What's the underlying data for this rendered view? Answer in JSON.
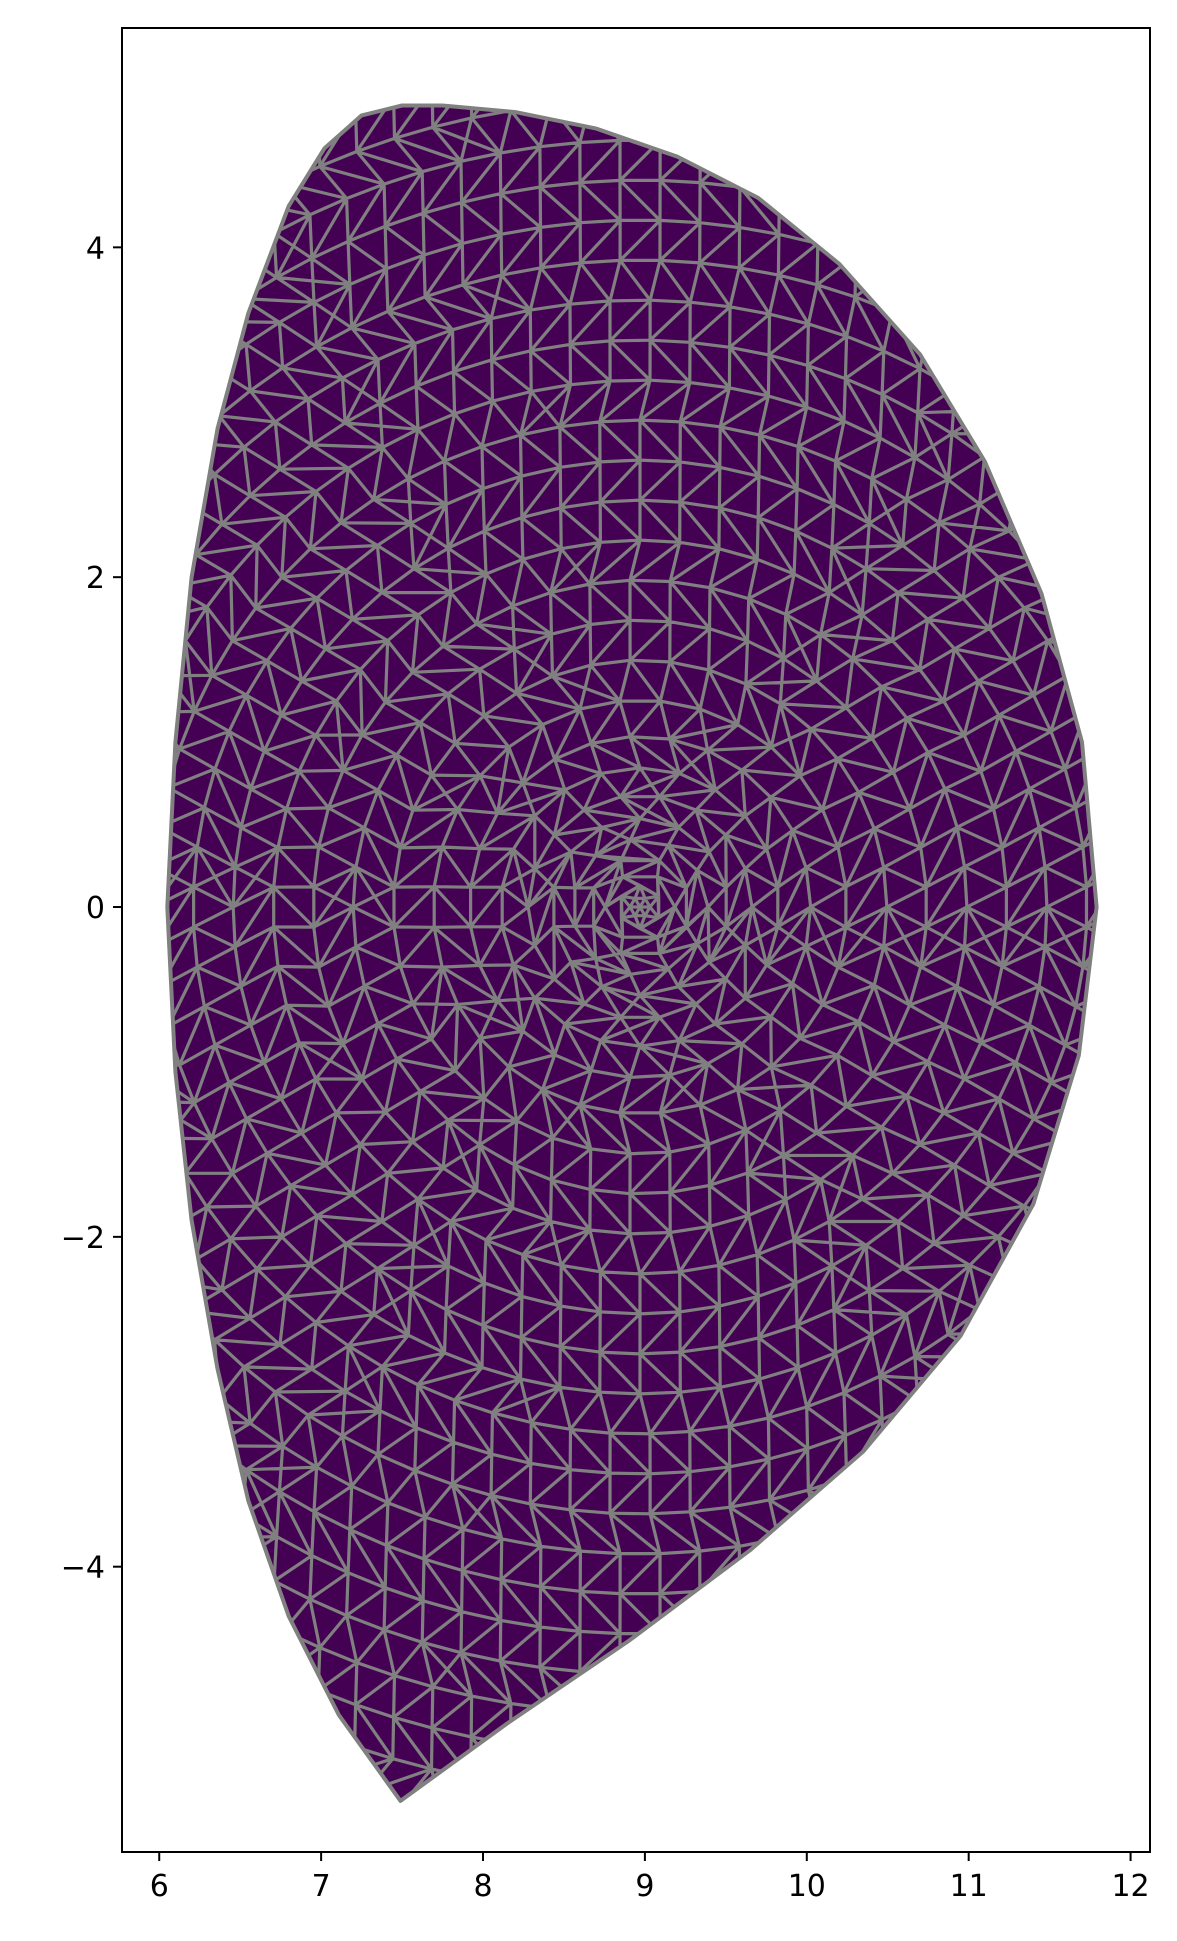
{
  "chart_data": {
    "type": "mesh",
    "title": "",
    "xlabel": "",
    "ylabel": "",
    "xlim": [
      5.77,
      12.12
    ],
    "ylim": [
      -5.73,
      5.33
    ],
    "xticks": [
      6,
      7,
      8,
      9,
      10,
      11,
      12
    ],
    "yticks": [
      -4,
      -2,
      0,
      2,
      4
    ],
    "xtick_labels": [
      "6",
      "7",
      "8",
      "9",
      "10",
      "11",
      "12"
    ],
    "ytick_labels": [
      "−4",
      "−2",
      "0",
      "2",
      "4"
    ],
    "grid": false,
    "legend": "none",
    "fill_color": "#440154",
    "edge_color": "#808080",
    "mesh_center": [
      8.97,
      0.0
    ],
    "boundary": [
      [
        7.49,
        -5.42
      ],
      [
        7.11,
        -4.9
      ],
      [
        6.8,
        -4.3
      ],
      [
        6.55,
        -3.6
      ],
      [
        6.36,
        -2.8
      ],
      [
        6.2,
        -1.9
      ],
      [
        6.1,
        -1.0
      ],
      [
        6.05,
        0.0
      ],
      [
        6.1,
        1.0
      ],
      [
        6.2,
        2.0
      ],
      [
        6.36,
        2.9
      ],
      [
        6.55,
        3.6
      ],
      [
        6.8,
        4.25
      ],
      [
        7.02,
        4.6
      ],
      [
        7.25,
        4.8
      ],
      [
        7.5,
        4.86
      ],
      [
        7.75,
        4.86
      ],
      [
        8.2,
        4.82
      ],
      [
        8.7,
        4.72
      ],
      [
        9.2,
        4.55
      ],
      [
        9.7,
        4.3
      ],
      [
        10.2,
        3.9
      ],
      [
        10.7,
        3.35
      ],
      [
        11.1,
        2.7
      ],
      [
        11.45,
        1.9
      ],
      [
        11.7,
        1.0
      ],
      [
        11.79,
        0.0
      ],
      [
        11.68,
        -0.9
      ],
      [
        11.4,
        -1.8
      ],
      [
        10.95,
        -2.6
      ],
      [
        10.35,
        -3.3
      ],
      [
        9.65,
        -3.9
      ],
      [
        8.9,
        -4.45
      ],
      [
        8.15,
        -4.95
      ],
      [
        7.49,
        -5.42
      ]
    ]
  }
}
